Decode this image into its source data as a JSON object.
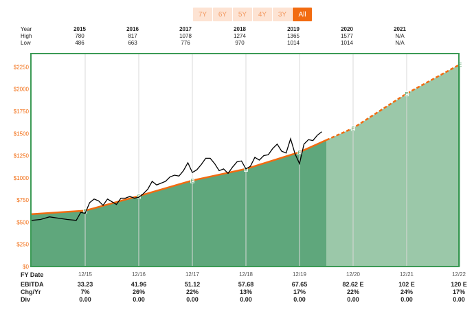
{
  "range_buttons": [
    {
      "label": "7Y",
      "active": false
    },
    {
      "label": "6Y",
      "active": false
    },
    {
      "label": "5Y",
      "active": false
    },
    {
      "label": "4Y",
      "active": false
    },
    {
      "label": "3Y",
      "active": false
    },
    {
      "label": "All",
      "active": true
    }
  ],
  "stats": {
    "year_label": "Year",
    "high_label": "High",
    "low_label": "Low",
    "years": [
      "2015",
      "2016",
      "2017",
      "2018",
      "2019",
      "2020",
      "2021"
    ],
    "high": [
      "780",
      "817",
      "1078",
      "1274",
      "1365",
      "1577",
      "N/A"
    ],
    "low": [
      "486",
      "663",
      "776",
      "970",
      "1014",
      "1014",
      "N/A"
    ]
  },
  "bottom": {
    "fy_label": "FY Date",
    "fy_dates": [
      "12/15",
      "12/16",
      "12/17",
      "12/18",
      "12/19",
      "12/20",
      "12/21",
      "12/22"
    ],
    "ebitda_label": "EBITDA",
    "ebitda": [
      "33.23",
      "41.96",
      "51.12",
      "57.68",
      "67.65",
      "82.62 E",
      "102 E",
      "120 E"
    ],
    "chg_label": "Chg/Yr",
    "chg": [
      "7%",
      "26%",
      "22%",
      "13%",
      "17%",
      "22%",
      "24%",
      "17%"
    ],
    "div_label": "Div",
    "div": [
      "0.00",
      "0.00",
      "0.00",
      "0.00",
      "0.00",
      "0.00",
      "0.00",
      "0.00"
    ]
  },
  "chart_data": {
    "type": "area",
    "ylim": [
      0,
      2400
    ],
    "y_ticks": [
      0,
      250,
      500,
      750,
      1000,
      1250,
      1500,
      1750,
      2000,
      2250
    ],
    "y_tick_labels": [
      "$0",
      "$250",
      "$500",
      "$750",
      "$1000",
      "$1250",
      "$1500",
      "$1750",
      "$2000",
      "$2250"
    ],
    "x_ticks": [
      "12/15",
      "12/16",
      "12/17",
      "12/18",
      "12/19",
      "12/20",
      "12/21",
      "12/22"
    ],
    "fair_value_marker": "E",
    "fair_value_series": {
      "x": [
        "12/14",
        "12/15",
        "12/16",
        "12/17",
        "12/18",
        "12/19",
        "12/20",
        "12/21",
        "12/22"
      ],
      "values": [
        590,
        630,
        795,
        970,
        1100,
        1290,
        1560,
        1950,
        2280
      ],
      "historical_through": "12/19"
    },
    "price_series": {
      "x": [
        "12/14",
        "2/15",
        "4/15",
        "6/15",
        "8/15",
        "10/15",
        "11/15",
        "12/15",
        "1/16",
        "2/16",
        "3/16",
        "4/16",
        "5/16",
        "6/16",
        "7/16",
        "8/16",
        "9/16",
        "10/16",
        "11/16",
        "12/16",
        "1/17",
        "2/17",
        "3/17",
        "4/17",
        "5/17",
        "6/17",
        "7/17",
        "8/17",
        "9/17",
        "10/17",
        "11/17",
        "12/17",
        "1/18",
        "2/18",
        "3/18",
        "4/18",
        "5/18",
        "6/18",
        "7/18",
        "8/18",
        "9/18",
        "10/18",
        "11/18",
        "12/18",
        "1/19",
        "2/19",
        "3/19",
        "4/19",
        "5/19",
        "6/19",
        "7/19",
        "8/19",
        "9/19",
        "10/19",
        "11/19",
        "12/19",
        "1/20",
        "2/20",
        "3/20",
        "4/20",
        "5/20"
      ],
      "values": [
        520,
        530,
        560,
        545,
        530,
        520,
        610,
        600,
        720,
        760,
        740,
        690,
        760,
        730,
        700,
        770,
        770,
        790,
        770,
        780,
        820,
        870,
        960,
        920,
        940,
        960,
        1010,
        1030,
        1020,
        1080,
        1170,
        1060,
        1090,
        1150,
        1220,
        1220,
        1160,
        1080,
        1100,
        1050,
        1120,
        1180,
        1190,
        1100,
        1130,
        1230,
        1200,
        1250,
        1260,
        1330,
        1380,
        1300,
        1280,
        1440,
        1270,
        1160,
        1380,
        1430,
        1420,
        1480,
        1520
      ]
    },
    "colors": {
      "fair_value": "#f26b10",
      "historical_area": "#5fa77c",
      "projected_area": "#9bc8a9",
      "price": "#000000",
      "frame": "#3b9a55",
      "tick_label": "#f26b10"
    }
  }
}
